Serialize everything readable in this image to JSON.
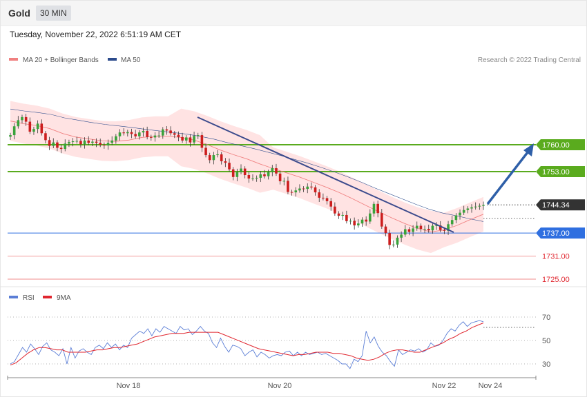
{
  "header": {
    "symbol": "Gold",
    "timeframe": "30 MIN",
    "datetime": "Tuesday, November 22, 2022 6:51:19 AM CET"
  },
  "credit": "Research © 2022 Trading Central",
  "colors": {
    "support": "#2f6fe0",
    "resistance": "#5aab1e",
    "target_low": "#e0262f",
    "bollinger_fill": "#ffe3e3",
    "ma20": "#f08080",
    "ma50": "#2c4b8c",
    "trendline": "#3b4a8c",
    "arrow": "#2e5fa8",
    "candle_up": "#39a33a",
    "candle_down": "#cc1d1d",
    "current": "#333333",
    "rsi": "#5b7ed6",
    "rsi_ma": "#e0262f"
  },
  "chart_data": [
    {
      "type": "candlestick",
      "title": "",
      "legend": [
        {
          "label": "MA 20 + Bollinger Bands",
          "color": "#f08080"
        },
        {
          "label": "MA 50",
          "color": "#2c4b8c"
        }
      ],
      "legend_placement": "top-left",
      "x_ticks": [
        "Nov 18",
        "Nov 20",
        "Nov 22",
        "Nov 24"
      ],
      "y_range": [
        1722,
        1772
      ],
      "levels": [
        {
          "label": "1760.00",
          "value": 1760.0,
          "kind": "resistance"
        },
        {
          "label": "1753.00",
          "value": 1753.0,
          "kind": "resistance"
        },
        {
          "label": "1744.34",
          "value": 1744.34,
          "kind": "current"
        },
        {
          "label": "1737.00",
          "value": 1737.0,
          "kind": "support"
        },
        {
          "label": "1731.00",
          "value": 1731.0,
          "kind": "target"
        },
        {
          "label": "1725.00",
          "value": 1725.0,
          "kind": "target"
        }
      ],
      "closes": [
        1762.5,
        1764.8,
        1766.4,
        1767.2,
        1766.0,
        1763.4,
        1764.1,
        1765.5,
        1763.0,
        1761.2,
        1759.7,
        1760.6,
        1759.2,
        1758.9,
        1760.3,
        1760.7,
        1760.9,
        1761.0,
        1760.1,
        1761.1,
        1760.5,
        1760.8,
        1760.5,
        1760.0,
        1759.8,
        1760.5,
        1761.1,
        1762.2,
        1763.2,
        1763.0,
        1763.3,
        1762.8,
        1762.2,
        1763.2,
        1763.6,
        1762.0,
        1761.9,
        1762.4,
        1762.4,
        1764.0,
        1763.7,
        1763.0,
        1762.6,
        1762.0,
        1761.1,
        1761.9,
        1760.6,
        1762.3,
        1762.5,
        1759.2,
        1757.3,
        1756.0,
        1757.3,
        1757.5,
        1755.7,
        1755.3,
        1753.6,
        1751.6,
        1752.9,
        1753.8,
        1752.1,
        1751.2,
        1751.2,
        1751.4,
        1752.3,
        1751.8,
        1752.9,
        1753.9,
        1752.5,
        1750.5,
        1750.6,
        1747.7,
        1747.6,
        1748.1,
        1748.6,
        1748.5,
        1749.1,
        1748.9,
        1747.6,
        1746.2,
        1746.1,
        1745.3,
        1743.9,
        1742.1,
        1741.5,
        1741.7,
        1740.1,
        1740.2,
        1739.0,
        1739.5,
        1740.5,
        1740.0,
        1742.1,
        1744.6,
        1742.2,
        1738.7,
        1737.0,
        1733.9,
        1734.0,
        1735.8,
        1736.6,
        1738.0,
        1737.3,
        1738.2,
        1738.9,
        1738.1,
        1738.1,
        1737.7,
        1738.9,
        1739.0,
        1737.8,
        1737.6,
        1739.3,
        1740.4,
        1741.6,
        1742.3,
        1743.0,
        1743.4,
        1743.7,
        1743.9,
        1744.1,
        1744.34
      ],
      "ma20_approx": [
        1766.2,
        1765.5,
        1765.0,
        1764.2,
        1762.9,
        1762.0,
        1761.5,
        1761.0,
        1760.9,
        1761.2,
        1761.9,
        1762.2,
        1762.2,
        1761.9,
        1761.2,
        1760.0,
        1758.6,
        1757.4,
        1756.3,
        1755.0,
        1753.8,
        1752.7,
        1751.6,
        1750.3,
        1749.0,
        1747.6,
        1746.0,
        1744.3,
        1742.6,
        1741.0,
        1739.5,
        1738.2,
        1737.3,
        1737.8,
        1739.0,
        1740.5,
        1741.9
      ],
      "ma50_approx": [
        1769.3,
        1768.8,
        1768.4,
        1767.9,
        1767.0,
        1766.4,
        1765.8,
        1765.3,
        1764.9,
        1764.5,
        1764.0,
        1763.6,
        1763.2,
        1762.8,
        1762.2,
        1761.5,
        1760.6,
        1759.8,
        1759.0,
        1758.1,
        1757.2,
        1756.2,
        1755.2,
        1754.1,
        1752.9,
        1751.6,
        1750.2,
        1748.7,
        1747.3,
        1745.9,
        1744.5,
        1743.2,
        1742.2,
        1741.5,
        1740.7,
        1740.0
      ]
    },
    {
      "type": "line",
      "title": "",
      "legend": [
        {
          "label": "RSI",
          "color": "#5b7ed6"
        },
        {
          "label": "9MA",
          "color": "#e0262f"
        }
      ],
      "legend_placement": "top-left",
      "y_ticks": [
        "70",
        "50",
        "30"
      ],
      "ylim": [
        20,
        80
      ],
      "series": [
        {
          "name": "RSI",
          "values": [
            30,
            32,
            38,
            44,
            40,
            47,
            43,
            38,
            45,
            48,
            42,
            40,
            37,
            43,
            30,
            44,
            35,
            41,
            43,
            40,
            38,
            44,
            46,
            43,
            48,
            44,
            47,
            42,
            46,
            44,
            52,
            55,
            58,
            56,
            60,
            54,
            60,
            57,
            62,
            60,
            58,
            56,
            62,
            59,
            60,
            55,
            58,
            62,
            58,
            56,
            48,
            44,
            52,
            45,
            40,
            46,
            45,
            43,
            37,
            40,
            42,
            36,
            40,
            38,
            35,
            37,
            38,
            37,
            40,
            41,
            37,
            40,
            37,
            40,
            38,
            39,
            40,
            38,
            39,
            37,
            35,
            33,
            30,
            30,
            26,
            34,
            32,
            37,
            58,
            48,
            53,
            45,
            40,
            37,
            32,
            28,
            42,
            38,
            40,
            42,
            41,
            43,
            40,
            42,
            48,
            45,
            46,
            50,
            56,
            60,
            58,
            63,
            66,
            62,
            65,
            66,
            67,
            66
          ]
        },
        {
          "name": "9MA",
          "values": [
            29,
            31,
            35,
            39,
            42,
            44,
            44,
            43,
            42,
            42,
            40,
            40,
            40,
            40,
            41,
            42,
            42,
            43,
            44,
            44,
            45,
            46,
            47,
            49,
            51,
            53,
            54,
            55,
            56,
            56,
            56,
            57,
            57,
            57,
            57,
            57,
            57,
            55,
            53,
            51,
            49,
            47,
            45,
            43,
            42,
            41,
            40,
            39,
            38,
            37,
            38,
            38,
            39,
            40,
            40,
            40,
            39,
            39,
            38,
            37,
            35,
            34,
            33,
            34,
            36,
            39,
            41,
            42,
            42,
            41,
            40,
            40,
            42,
            44,
            46,
            48,
            51,
            53,
            56,
            58,
            61,
            63,
            65
          ]
        }
      ]
    }
  ]
}
